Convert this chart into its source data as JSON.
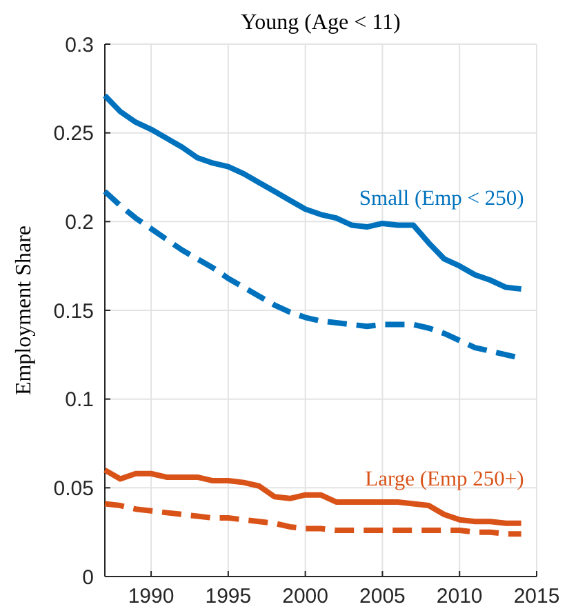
{
  "chart_data": {
    "type": "line",
    "title": "Young (Age < 11)",
    "ylabel": "Employment Share",
    "x": [
      1987,
      1988,
      1989,
      1990,
      1991,
      1992,
      1993,
      1994,
      1995,
      1996,
      1997,
      1998,
      1999,
      2000,
      2001,
      2002,
      2003,
      2004,
      2005,
      2006,
      2007,
      2008,
      2009,
      2010,
      2011,
      2012,
      2013,
      2014
    ],
    "series": [
      {
        "name": "Small (Emp < 250)",
        "color": "#0072bd",
        "line_style": "solid",
        "values": [
          0.271,
          0.262,
          0.256,
          0.252,
          0.247,
          0.242,
          0.236,
          0.233,
          0.231,
          0.227,
          0.222,
          0.217,
          0.212,
          0.207,
          0.204,
          0.202,
          0.198,
          0.197,
          0.199,
          0.198,
          0.198,
          0.188,
          0.179,
          0.175,
          0.17,
          0.167,
          0.163,
          0.162
        ]
      },
      {
        "color": "#0072bd",
        "line_style": "dashed",
        "values": [
          0.217,
          0.209,
          0.202,
          0.196,
          0.19,
          0.184,
          0.179,
          0.174,
          0.168,
          0.163,
          0.158,
          0.153,
          0.149,
          0.146,
          0.144,
          0.143,
          0.142,
          0.141,
          0.142,
          0.142,
          0.142,
          0.14,
          0.137,
          0.133,
          0.129,
          0.127,
          0.125,
          0.123
        ]
      },
      {
        "name": "Large (Emp 250+)",
        "color": "#d95319",
        "line_style": "solid",
        "values": [
          0.06,
          0.055,
          0.058,
          0.058,
          0.056,
          0.056,
          0.056,
          0.054,
          0.054,
          0.053,
          0.051,
          0.045,
          0.044,
          0.046,
          0.046,
          0.042,
          0.042,
          0.042,
          0.042,
          0.042,
          0.041,
          0.04,
          0.035,
          0.032,
          0.031,
          0.031,
          0.03,
          0.03
        ]
      },
      {
        "color": "#d95319",
        "line_style": "dashed",
        "values": [
          0.041,
          0.04,
          0.038,
          0.037,
          0.036,
          0.035,
          0.034,
          0.033,
          0.033,
          0.032,
          0.031,
          0.03,
          0.028,
          0.027,
          0.027,
          0.026,
          0.026,
          0.026,
          0.026,
          0.026,
          0.026,
          0.026,
          0.026,
          0.026,
          0.025,
          0.025,
          0.024,
          0.024
        ]
      }
    ],
    "xlim": [
      1987,
      2015
    ],
    "xticks": [
      1990,
      1995,
      2000,
      2005,
      2010,
      2015
    ],
    "ylim": [
      0,
      0.3
    ],
    "yticks": [
      0,
      0.05,
      0.1,
      0.15,
      0.2,
      0.25,
      0.3
    ],
    "grid": true
  }
}
